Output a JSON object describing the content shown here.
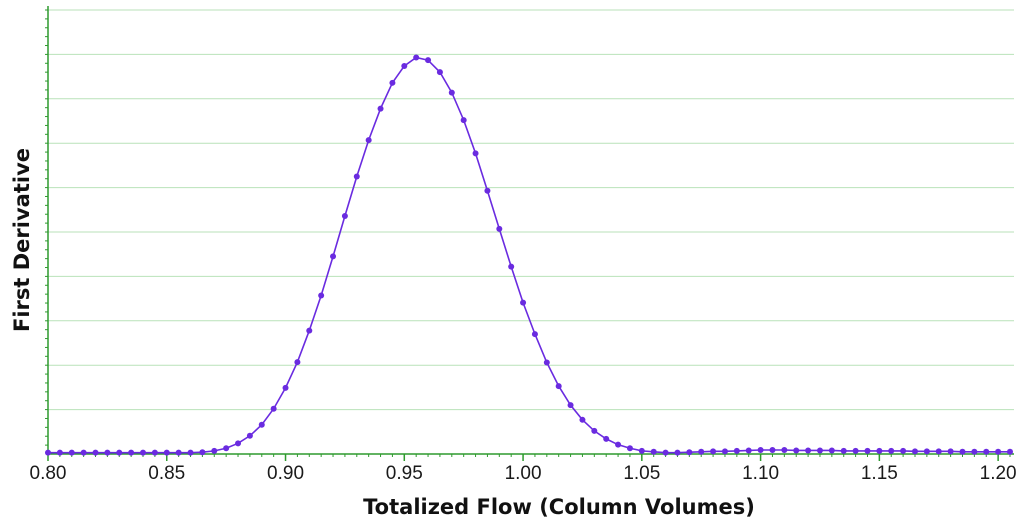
{
  "chart_data": {
    "type": "line",
    "title": "",
    "xlabel": "Totalized Flow (Column Volumes)",
    "ylabel": "First Derivative",
    "xlim": [
      0.8,
      1.205
    ],
    "ylim": [
      0,
      1.0
    ],
    "xticks": [
      "0.80",
      "0.85",
      "0.90",
      "0.95",
      "1.00",
      "1.05",
      "1.10",
      "1.15",
      "1.20"
    ],
    "ytick_labels_shown": false,
    "grid": "horizontal",
    "legend": "none",
    "markers": true,
    "colors": {
      "series": "#6a2be0",
      "grid": "#b9e2b9",
      "axis": "#2e9a2e"
    },
    "series": [
      {
        "x": [
          0.8,
          0.805,
          0.81,
          0.815,
          0.82,
          0.825,
          0.83,
          0.835,
          0.84,
          0.845,
          0.85,
          0.855,
          0.86,
          0.865,
          0.87,
          0.875,
          0.88,
          0.885,
          0.89,
          0.895,
          0.9,
          0.905,
          0.91,
          0.915,
          0.92,
          0.925,
          0.93,
          0.935,
          0.94,
          0.945,
          0.95,
          0.955,
          0.96,
          0.965,
          0.97,
          0.975,
          0.98,
          0.985,
          0.99,
          0.995,
          1.0,
          1.005,
          1.01,
          1.015,
          1.02,
          1.025,
          1.03,
          1.035,
          1.04,
          1.045,
          1.05,
          1.055,
          1.06,
          1.065,
          1.07,
          1.075,
          1.08,
          1.085,
          1.09,
          1.095,
          1.1,
          1.105,
          1.11,
          1.115,
          1.12,
          1.125,
          1.13,
          1.135,
          1.14,
          1.145,
          1.15,
          1.155,
          1.16,
          1.165,
          1.17,
          1.175,
          1.18,
          1.185,
          1.19,
          1.195,
          1.2,
          1.205
        ],
        "values": [
          0.003,
          0.003,
          0.003,
          0.003,
          0.003,
          0.003,
          0.003,
          0.003,
          0.003,
          0.003,
          0.003,
          0.003,
          0.003,
          0.004,
          0.007,
          0.013,
          0.024,
          0.041,
          0.066,
          0.102,
          0.149,
          0.207,
          0.278,
          0.357,
          0.445,
          0.536,
          0.625,
          0.707,
          0.778,
          0.836,
          0.874,
          0.893,
          0.887,
          0.86,
          0.814,
          0.752,
          0.677,
          0.593,
          0.507,
          0.422,
          0.341,
          0.27,
          0.206,
          0.153,
          0.11,
          0.077,
          0.052,
          0.034,
          0.021,
          0.013,
          0.007,
          0.005,
          0.003,
          0.003,
          0.004,
          0.005,
          0.006,
          0.006,
          0.007,
          0.008,
          0.009,
          0.009,
          0.009,
          0.008,
          0.008,
          0.008,
          0.008,
          0.007,
          0.007,
          0.007,
          0.007,
          0.007,
          0.007,
          0.006,
          0.006,
          0.006,
          0.006,
          0.005,
          0.005,
          0.005,
          0.005,
          0.005
        ]
      }
    ]
  }
}
